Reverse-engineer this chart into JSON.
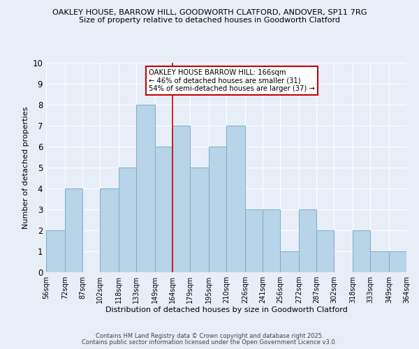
{
  "title1": "OAKLEY HOUSE, BARROW HILL, GOODWORTH CLATFORD, ANDOVER, SP11 7RG",
  "title2": "Size of property relative to detached houses in Goodworth Clatford",
  "xlabel": "Distribution of detached houses by size in Goodworth Clatford",
  "ylabel": "Number of detached properties",
  "footer1": "Contains HM Land Registry data © Crown copyright and database right 2025.",
  "footer2": "Contains public sector information licensed under the Open Government Licence v3.0.",
  "bin_edges": [
    56,
    72,
    87,
    102,
    118,
    133,
    149,
    164,
    179,
    195,
    210,
    226,
    241,
    256,
    272,
    287,
    302,
    318,
    333,
    349,
    364
  ],
  "counts": [
    2,
    4,
    0,
    4,
    5,
    8,
    6,
    7,
    5,
    6,
    7,
    3,
    3,
    1,
    3,
    2,
    0,
    2,
    1,
    1
  ],
  "bar_color": "#b8d4e8",
  "bar_edgecolor": "#7baec8",
  "ref_line_x": 164,
  "ref_line_color": "#cc0000",
  "annotation_title": "OAKLEY HOUSE BARROW HILL: 166sqm",
  "annotation_line2": "← 46% of detached houses are smaller (31)",
  "annotation_line3": "54% of semi-detached houses are larger (37) →",
  "annotation_box_facecolor": "#ffffff",
  "annotation_box_edgecolor": "#cc0000",
  "ylim": [
    0,
    10
  ],
  "background_color": "#e8eef8",
  "tick_labels": [
    "56sqm",
    "72sqm",
    "87sqm",
    "102sqm",
    "118sqm",
    "133sqm",
    "149sqm",
    "164sqm",
    "179sqm",
    "195sqm",
    "210sqm",
    "226sqm",
    "241sqm",
    "256sqm",
    "272sqm",
    "287sqm",
    "302sqm",
    "318sqm",
    "333sqm",
    "349sqm",
    "364sqm"
  ]
}
